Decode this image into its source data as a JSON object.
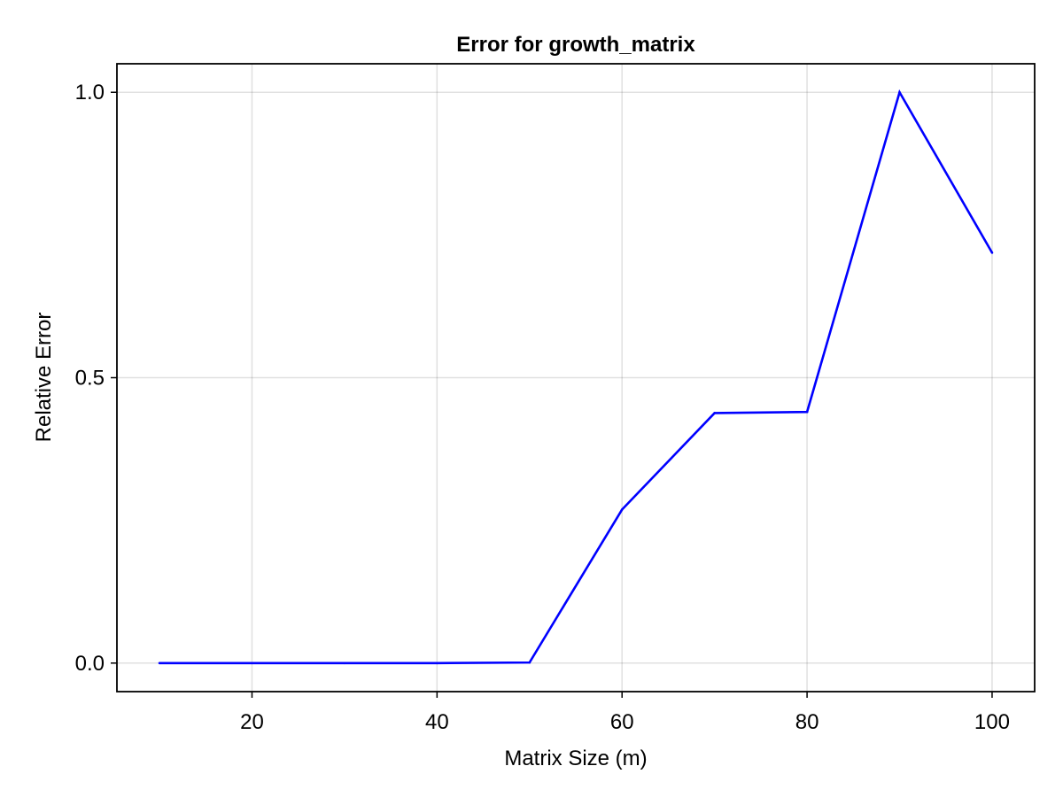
{
  "chart_data": {
    "type": "line",
    "title": "Error for growth_matrix",
    "xlabel": "Matrix Size (m)",
    "ylabel": "Relative Error",
    "xlim": [
      5.4,
      104.6
    ],
    "ylim": [
      -0.05,
      1.05
    ],
    "xticks": [
      20,
      40,
      60,
      80,
      100
    ],
    "xtick_labels": [
      "20",
      "40",
      "60",
      "80",
      "100"
    ],
    "yticks": [
      0.0,
      0.5,
      1.0
    ],
    "ytick_labels": [
      "0.0",
      "0.5",
      "1.0"
    ],
    "grid": true,
    "legend": "none",
    "series": [
      {
        "color": "#0000ff",
        "x": [
          10,
          20,
          30,
          40,
          50,
          60,
          70,
          80,
          90,
          100
        ],
        "y": [
          0.0,
          0.0,
          0.0,
          0.0,
          0.001,
          0.269,
          0.438,
          0.44,
          1.0,
          0.719
        ]
      }
    ]
  }
}
